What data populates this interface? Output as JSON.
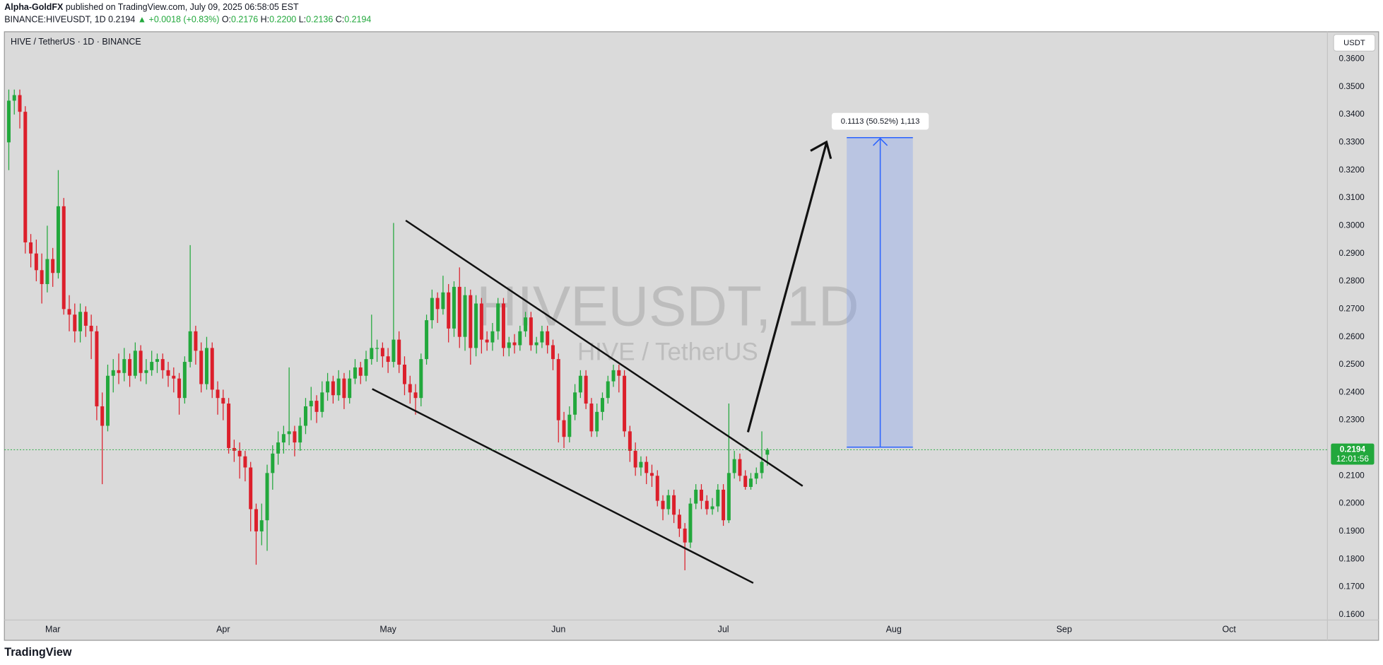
{
  "header": {
    "author": "Alpha-GoldFX",
    "published": "published on TradingView.com, July 09, 2025 06:58:05 EST",
    "symbol": "BINANCE:HIVEUSDT, 1D",
    "last": "0.2194",
    "change": "▲ +0.0018 (+0.83%)",
    "ohlc": [
      {
        "label": "O:",
        "value": "0.2176"
      },
      {
        "label": "H:",
        "value": "0.2200"
      },
      {
        "label": "L:",
        "value": "0.2136"
      },
      {
        "label": "C:",
        "value": "0.2194"
      }
    ]
  },
  "chart_data": {
    "type": "candlestick",
    "title": "HIVE / TetherUS · 1D · BINANCE",
    "watermark": "HIVEUSDT, 1D",
    "watermark_sub": "HIVE / TetherUS",
    "currency": "USDT",
    "price_label": "0.2194",
    "countdown": "12:01:56",
    "annotation": "0.1113 (50.52%) 1,113",
    "brand": "TradingView",
    "up_color": "#22a83c",
    "down_color": "#dc1f2b",
    "x": [
      -8,
      -7,
      -6,
      -5,
      -4,
      -3,
      -2,
      -1,
      0,
      1,
      2,
      3,
      4,
      5,
      6,
      7,
      8,
      9,
      10,
      11,
      12,
      13,
      14,
      15,
      16,
      17,
      18,
      19,
      20,
      21,
      22,
      23,
      24,
      25,
      26,
      27,
      28,
      29,
      30,
      31,
      32,
      33,
      34,
      35,
      36,
      37,
      38,
      39,
      40,
      41,
      42,
      43,
      44,
      45,
      46,
      47,
      48,
      49,
      50,
      51,
      52,
      53,
      54,
      55,
      56,
      57,
      58,
      59,
      60,
      61,
      62,
      63,
      64,
      65,
      66,
      67,
      68,
      69,
      70,
      71,
      72,
      73,
      74,
      75,
      76,
      77,
      78,
      79,
      80,
      81,
      82,
      83,
      84,
      85,
      86,
      87,
      88,
      89,
      90,
      91,
      92,
      93,
      94,
      95,
      96,
      97,
      98,
      99,
      100,
      101,
      102,
      103,
      104,
      105,
      106,
      107,
      108,
      109,
      110,
      111,
      112,
      113,
      114,
      115,
      116,
      117,
      118,
      119,
      120,
      121,
      122,
      123,
      124,
      125,
      126,
      127,
      128,
      129,
      130
    ],
    "ohlc": [
      [
        0.33,
        0.349,
        0.32,
        0.345
      ],
      [
        0.345,
        0.349,
        0.34,
        0.347
      ],
      [
        0.347,
        0.349,
        0.335,
        0.341
      ],
      [
        0.341,
        0.343,
        0.29,
        0.294
      ],
      [
        0.294,
        0.297,
        0.285,
        0.29
      ],
      [
        0.29,
        0.295,
        0.28,
        0.284
      ],
      [
        0.284,
        0.29,
        0.272,
        0.279
      ],
      [
        0.279,
        0.3,
        0.276,
        0.288
      ],
      [
        0.288,
        0.292,
        0.278,
        0.283
      ],
      [
        0.283,
        0.32,
        0.281,
        0.307
      ],
      [
        0.307,
        0.31,
        0.268,
        0.27
      ],
      [
        0.27,
        0.275,
        0.262,
        0.268
      ],
      [
        0.268,
        0.272,
        0.258,
        0.262
      ],
      [
        0.262,
        0.272,
        0.258,
        0.269
      ],
      [
        0.269,
        0.271,
        0.26,
        0.264
      ],
      [
        0.264,
        0.268,
        0.252,
        0.262
      ],
      [
        0.262,
        0.264,
        0.23,
        0.235
      ],
      [
        0.235,
        0.24,
        0.207,
        0.228
      ],
      [
        0.228,
        0.25,
        0.226,
        0.246
      ],
      [
        0.246,
        0.252,
        0.24,
        0.248
      ],
      [
        0.248,
        0.254,
        0.243,
        0.247
      ],
      [
        0.247,
        0.256,
        0.244,
        0.252
      ],
      [
        0.252,
        0.254,
        0.242,
        0.246
      ],
      [
        0.246,
        0.258,
        0.245,
        0.255
      ],
      [
        0.255,
        0.257,
        0.244,
        0.247
      ],
      [
        0.247,
        0.252,
        0.243,
        0.248
      ],
      [
        0.248,
        0.255,
        0.246,
        0.251
      ],
      [
        0.251,
        0.254,
        0.247,
        0.252
      ],
      [
        0.252,
        0.254,
        0.245,
        0.248
      ],
      [
        0.248,
        0.251,
        0.242,
        0.246
      ],
      [
        0.246,
        0.249,
        0.24,
        0.245
      ],
      [
        0.245,
        0.247,
        0.232,
        0.238
      ],
      [
        0.238,
        0.253,
        0.236,
        0.251
      ],
      [
        0.251,
        0.293,
        0.249,
        0.262
      ],
      [
        0.262,
        0.264,
        0.25,
        0.255
      ],
      [
        0.255,
        0.258,
        0.24,
        0.243
      ],
      [
        0.243,
        0.26,
        0.241,
        0.256
      ],
      [
        0.256,
        0.258,
        0.238,
        0.241
      ],
      [
        0.241,
        0.244,
        0.232,
        0.238
      ],
      [
        0.238,
        0.241,
        0.23,
        0.236
      ],
      [
        0.236,
        0.238,
        0.218,
        0.22
      ],
      [
        0.22,
        0.223,
        0.215,
        0.219
      ],
      [
        0.219,
        0.222,
        0.209,
        0.217
      ],
      [
        0.217,
        0.219,
        0.208,
        0.213
      ],
      [
        0.213,
        0.215,
        0.19,
        0.198
      ],
      [
        0.198,
        0.2,
        0.178,
        0.19
      ],
      [
        0.19,
        0.2,
        0.185,
        0.194
      ],
      [
        0.194,
        0.214,
        0.183,
        0.211
      ],
      [
        0.211,
        0.221,
        0.205,
        0.218
      ],
      [
        0.218,
        0.226,
        0.214,
        0.222
      ],
      [
        0.222,
        0.228,
        0.218,
        0.225
      ],
      [
        0.225,
        0.249,
        0.221,
        0.226
      ],
      [
        0.226,
        0.228,
        0.217,
        0.222
      ],
      [
        0.222,
        0.231,
        0.219,
        0.228
      ],
      [
        0.228,
        0.238,
        0.225,
        0.235
      ],
      [
        0.235,
        0.242,
        0.23,
        0.237
      ],
      [
        0.237,
        0.239,
        0.229,
        0.233
      ],
      [
        0.233,
        0.244,
        0.231,
        0.24
      ],
      [
        0.24,
        0.247,
        0.237,
        0.244
      ],
      [
        0.244,
        0.246,
        0.236,
        0.239
      ],
      [
        0.239,
        0.248,
        0.237,
        0.245
      ],
      [
        0.245,
        0.247,
        0.234,
        0.238
      ],
      [
        0.238,
        0.248,
        0.236,
        0.245
      ],
      [
        0.245,
        0.252,
        0.243,
        0.249
      ],
      [
        0.249,
        0.251,
        0.243,
        0.246
      ],
      [
        0.246,
        0.255,
        0.244,
        0.252
      ],
      [
        0.252,
        0.268,
        0.25,
        0.256
      ],
      [
        0.256,
        0.259,
        0.251,
        0.256
      ],
      [
        0.256,
        0.258,
        0.249,
        0.253
      ],
      [
        0.253,
        0.256,
        0.247,
        0.251
      ],
      [
        0.251,
        0.301,
        0.249,
        0.259
      ],
      [
        0.259,
        0.262,
        0.247,
        0.25
      ],
      [
        0.25,
        0.253,
        0.239,
        0.243
      ],
      [
        0.243,
        0.246,
        0.236,
        0.24
      ],
      [
        0.24,
        0.243,
        0.232,
        0.238
      ],
      [
        0.238,
        0.254,
        0.235,
        0.252
      ],
      [
        0.252,
        0.268,
        0.25,
        0.266
      ],
      [
        0.266,
        0.277,
        0.263,
        0.274
      ],
      [
        0.274,
        0.276,
        0.265,
        0.27
      ],
      [
        0.27,
        0.282,
        0.268,
        0.276
      ],
      [
        0.276,
        0.279,
        0.258,
        0.263
      ],
      [
        0.263,
        0.28,
        0.26,
        0.278
      ],
      [
        0.278,
        0.285,
        0.256,
        0.26
      ],
      [
        0.26,
        0.278,
        0.255,
        0.275
      ],
      [
        0.275,
        0.277,
        0.25,
        0.256
      ],
      [
        0.256,
        0.275,
        0.253,
        0.272
      ],
      [
        0.272,
        0.274,
        0.254,
        0.259
      ],
      [
        0.259,
        0.262,
        0.255,
        0.258
      ],
      [
        0.258,
        0.265,
        0.255,
        0.262
      ],
      [
        0.262,
        0.274,
        0.259,
        0.272
      ],
      [
        0.272,
        0.274,
        0.253,
        0.256
      ],
      [
        0.256,
        0.26,
        0.253,
        0.258
      ],
      [
        0.258,
        0.261,
        0.254,
        0.257
      ],
      [
        0.257,
        0.264,
        0.255,
        0.262
      ],
      [
        0.262,
        0.269,
        0.26,
        0.267
      ],
      [
        0.267,
        0.269,
        0.255,
        0.257
      ],
      [
        0.257,
        0.26,
        0.254,
        0.258
      ],
      [
        0.258,
        0.264,
        0.256,
        0.262
      ],
      [
        0.262,
        0.264,
        0.254,
        0.257
      ],
      [
        0.257,
        0.259,
        0.248,
        0.252
      ],
      [
        0.252,
        0.254,
        0.222,
        0.23
      ],
      [
        0.23,
        0.233,
        0.22,
        0.224
      ],
      [
        0.224,
        0.235,
        0.222,
        0.232
      ],
      [
        0.232,
        0.243,
        0.23,
        0.24
      ],
      [
        0.24,
        0.248,
        0.238,
        0.246
      ],
      [
        0.246,
        0.248,
        0.234,
        0.236
      ],
      [
        0.236,
        0.238,
        0.224,
        0.226
      ],
      [
        0.226,
        0.236,
        0.224,
        0.233
      ],
      [
        0.233,
        0.24,
        0.23,
        0.238
      ],
      [
        0.238,
        0.246,
        0.236,
        0.244
      ],
      [
        0.244,
        0.25,
        0.242,
        0.248
      ],
      [
        0.248,
        0.25,
        0.24,
        0.246
      ],
      [
        0.246,
        0.248,
        0.224,
        0.226
      ],
      [
        0.226,
        0.228,
        0.215,
        0.219
      ],
      [
        0.219,
        0.222,
        0.21,
        0.213
      ],
      [
        0.213,
        0.217,
        0.21,
        0.215
      ],
      [
        0.215,
        0.217,
        0.207,
        0.211
      ],
      [
        0.211,
        0.214,
        0.206,
        0.21
      ],
      [
        0.21,
        0.212,
        0.199,
        0.201
      ],
      [
        0.201,
        0.203,
        0.194,
        0.198
      ],
      [
        0.198,
        0.205,
        0.196,
        0.203
      ],
      [
        0.203,
        0.205,
        0.193,
        0.196
      ],
      [
        0.196,
        0.198,
        0.188,
        0.191
      ],
      [
        0.191,
        0.193,
        0.176,
        0.186
      ],
      [
        0.186,
        0.202,
        0.184,
        0.2
      ],
      [
        0.2,
        0.207,
        0.198,
        0.205
      ],
      [
        0.205,
        0.207,
        0.198,
        0.201
      ],
      [
        0.201,
        0.203,
        0.196,
        0.198
      ],
      [
        0.198,
        0.202,
        0.196,
        0.199
      ],
      [
        0.199,
        0.207,
        0.197,
        0.205
      ],
      [
        0.205,
        0.207,
        0.192,
        0.194
      ],
      [
        0.194,
        0.236,
        0.193,
        0.211
      ],
      [
        0.211,
        0.219,
        0.209,
        0.216
      ],
      [
        0.216,
        0.218,
        0.208,
        0.21
      ],
      [
        0.21,
        0.212,
        0.205,
        0.206
      ],
      [
        0.206,
        0.211,
        0.205,
        0.209
      ],
      [
        0.209,
        0.213,
        0.207,
        0.211
      ],
      [
        0.211,
        0.226,
        0.209,
        0.215
      ],
      [
        0.2176,
        0.22,
        0.2136,
        0.2194
      ]
    ],
    "xlim": [
      -8.8,
      231.9
    ],
    "xticks": [
      {
        "value": 0,
        "label": "Mar"
      },
      {
        "value": 31,
        "label": "Apr"
      },
      {
        "value": 61,
        "label": "May"
      },
      {
        "value": 92,
        "label": "Jun"
      },
      {
        "value": 122,
        "label": "Jul"
      },
      {
        "value": 153,
        "label": "Aug"
      },
      {
        "value": 184,
        "label": "Sep"
      },
      {
        "value": 214,
        "label": "Oct"
      }
    ],
    "ylim": [
      0.1581,
      0.3698
    ],
    "yticks": [
      {
        "value": 0.16,
        "label": "0.1600"
      },
      {
        "value": 0.17,
        "label": "0.1700"
      },
      {
        "value": 0.18,
        "label": "0.1800"
      },
      {
        "value": 0.19,
        "label": "0.1900"
      },
      {
        "value": 0.2,
        "label": "0.2000"
      },
      {
        "value": 0.21,
        "label": "0.2100"
      },
      {
        "value": 0.22,
        "label": "0.2200"
      },
      {
        "value": 0.23,
        "label": "0.2300"
      },
      {
        "value": 0.24,
        "label": "0.2400"
      },
      {
        "value": 0.25,
        "label": "0.2500"
      },
      {
        "value": 0.26,
        "label": "0.2600"
      },
      {
        "value": 0.27,
        "label": "0.2700"
      },
      {
        "value": 0.28,
        "label": "0.2800"
      },
      {
        "value": 0.29,
        "label": "0.2900"
      },
      {
        "value": 0.3,
        "label": "0.3000"
      },
      {
        "value": 0.31,
        "label": "0.3100"
      },
      {
        "value": 0.32,
        "label": "0.3200"
      },
      {
        "value": 0.33,
        "label": "0.3300"
      },
      {
        "value": 0.34,
        "label": "0.3400"
      },
      {
        "value": 0.35,
        "label": "0.3500"
      },
      {
        "value": 0.36,
        "label": "0.3600"
      }
    ]
  }
}
